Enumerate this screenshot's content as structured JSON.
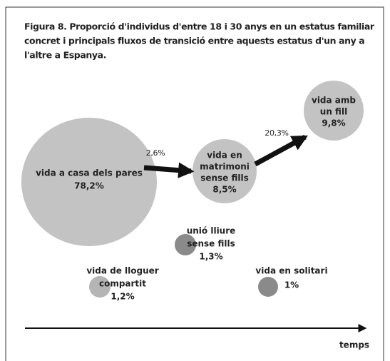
{
  "title": [
    "Figura 8. Proporció d'individus d'entre 18 i 30 anys en un estatus familiar",
    "concret i principals fluxos de transició entre aquests estatus d'un any a",
    "l'altre a Espanya."
  ],
  "nodes": [
    {
      "lines": [
        "vida a casa dels pares",
        "78,2%"
      ]
    },
    {
      "lines": [
        "vida en",
        "matrimoni",
        "sense fills",
        "8,5%"
      ]
    },
    {
      "lines": [
        "vida amb",
        "un fill",
        "9,8%"
      ]
    },
    {
      "lines": [
        "unió lliure",
        "sense fills",
        "1,3%"
      ]
    },
    {
      "lines": [
        "vida de lloguer",
        "compartit",
        "1,2%"
      ]
    },
    {
      "lines": [
        "vida en solitari",
        "1%"
      ]
    }
  ],
  "flows": [
    {
      "label": "2,6%"
    },
    {
      "label": "20,3%"
    }
  ],
  "axis_label": "temps"
}
